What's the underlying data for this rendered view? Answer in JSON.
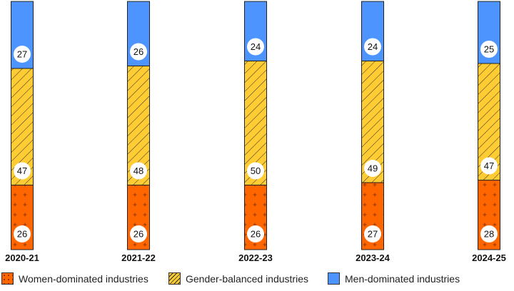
{
  "chart_data": {
    "type": "bar",
    "stacked": true,
    "normalized": true,
    "categories": [
      "2020-21",
      "2021-22",
      "2022-23",
      "2023-24",
      "2024-25"
    ],
    "series": [
      {
        "name": "Women-dominated industries",
        "values": [
          26,
          26,
          26,
          27,
          28
        ],
        "color": "#FF6600",
        "pattern": "plus"
      },
      {
        "name": "Gender-balanced industries",
        "values": [
          47,
          48,
          50,
          49,
          47
        ],
        "color": "#FFCC33",
        "pattern": "diagonal-hatch"
      },
      {
        "name": "Men-dominated industries",
        "values": [
          27,
          26,
          24,
          24,
          25
        ],
        "color": "#4D94FF",
        "pattern": "solid"
      }
    ],
    "ylim": [
      0,
      100
    ],
    "legend_position": "bottom",
    "grid": false
  }
}
